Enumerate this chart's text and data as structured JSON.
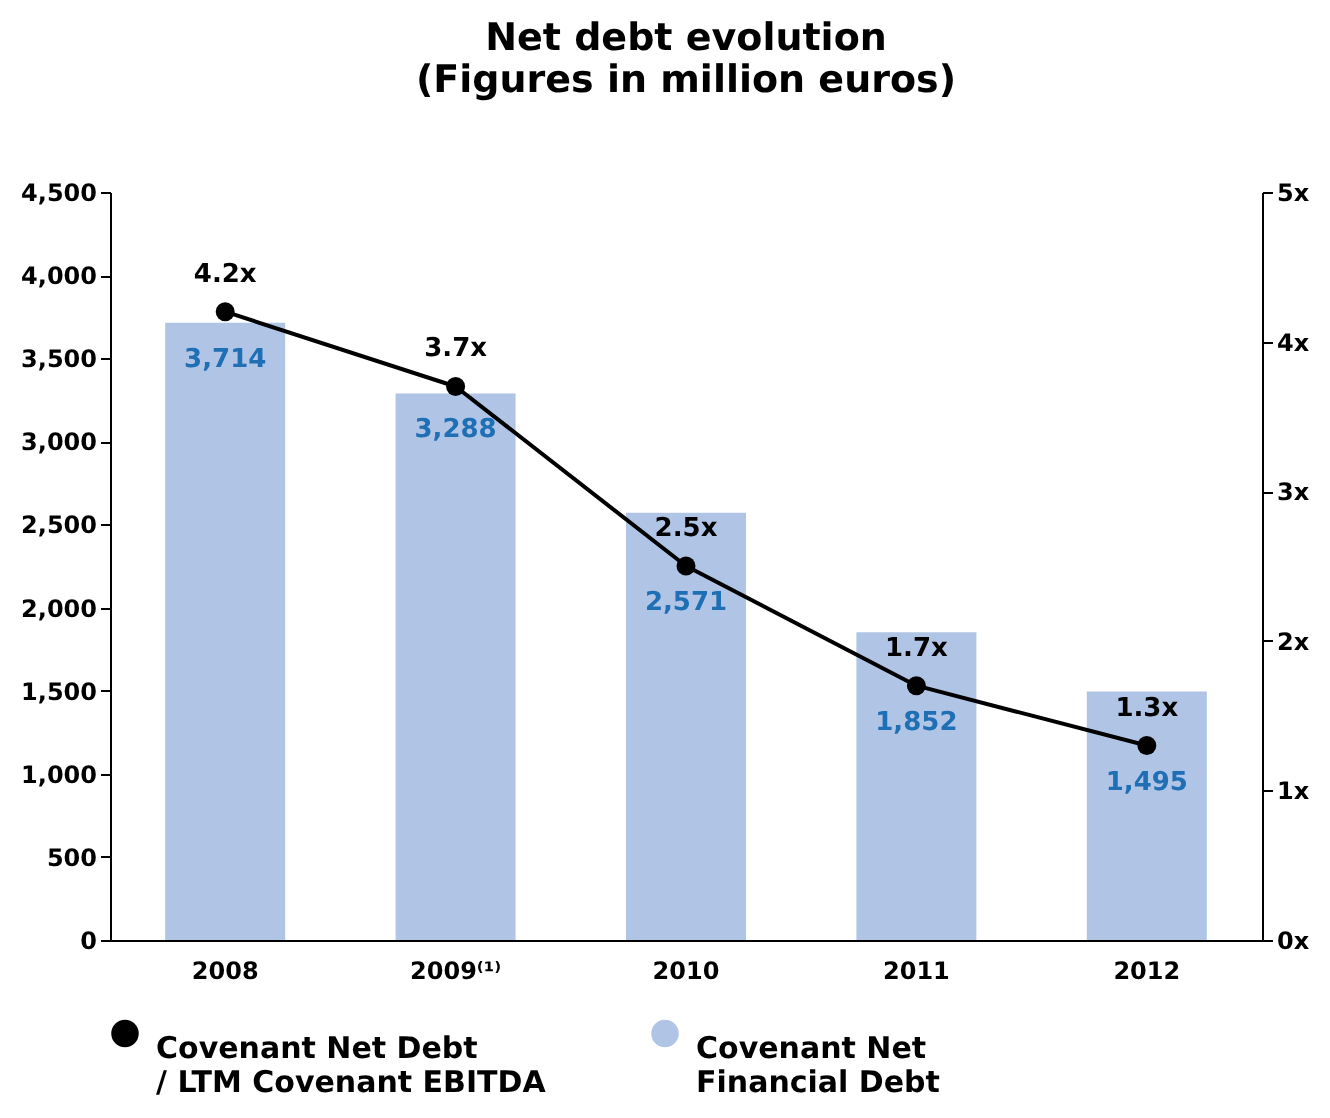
{
  "chart_data": {
    "type": "bar",
    "title": "Net debt evolution\n(Figures in million euros)",
    "categories": [
      "2008",
      "2009⁽¹⁾",
      "2010",
      "2011",
      "2012"
    ],
    "series": [
      {
        "name": "Covenant Net Debt / LTM Covenant EBITDA",
        "type": "line",
        "axis": "y2",
        "color": "#000000",
        "values": [
          4.2,
          3.7,
          2.5,
          1.7,
          1.3
        ],
        "value_labels": [
          "4.2x",
          "3.7x",
          "2.5x",
          "1.7x",
          "1.3x"
        ]
      },
      {
        "name": "Covenant Net Financial Debt",
        "color": "#b0c4e6",
        "values": [
          3714,
          3288,
          2571,
          1852,
          1495
        ],
        "value_labels": [
          "3,714",
          "3,288",
          "2,571",
          "1,852",
          "1,495"
        ]
      }
    ],
    "ylim": [
      0,
      4500
    ],
    "yticks": [
      0,
      500,
      {
        "value": 1000,
        "label": "1,000"
      },
      {
        "value": 1500,
        "label": "1,500"
      },
      {
        "value": 2000,
        "label": "2,000"
      },
      {
        "value": 2500,
        "label": "2,500"
      },
      {
        "value": 3000,
        "label": "3,000"
      },
      {
        "value": 3500,
        "label": "3,500"
      },
      {
        "value": 4000,
        "label": "4,000"
      },
      {
        "value": 4500,
        "label": "4,500"
      }
    ],
    "y2lim": [
      0,
      5
    ],
    "y2ticks": [
      {
        "value": 0,
        "label": "0x"
      },
      {
        "value": 1,
        "label": "1x"
      },
      {
        "value": 2,
        "label": "2x"
      },
      {
        "value": 3,
        "label": "3x"
      },
      {
        "value": 4,
        "label": "4x"
      },
      {
        "value": 5,
        "label": "5x"
      }
    ],
    "marker": "circle",
    "line_style": "solid",
    "grid": false,
    "legend": "bottom"
  }
}
